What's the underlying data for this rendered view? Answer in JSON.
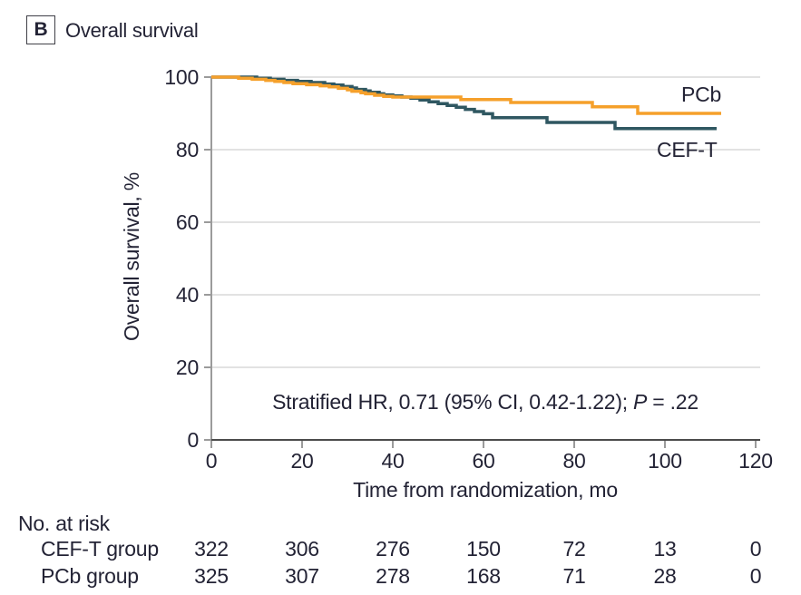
{
  "header": {
    "panel_label": "B",
    "title": "Overall survival"
  },
  "chart_data": {
    "type": "line",
    "subtype": "kaplan-meier-step",
    "title": "Overall survival",
    "xlabel": "Time from randomization, mo",
    "ylabel": "Overall survival, %",
    "xlim": [
      0,
      120
    ],
    "ylim": [
      0,
      100
    ],
    "x_ticks": [
      0,
      20,
      40,
      60,
      80,
      100,
      120
    ],
    "y_ticks": [
      0,
      20,
      40,
      60,
      80,
      100
    ],
    "grid": "horizontal",
    "legend_position": "end-of-curve",
    "annotation": {
      "before_p": "Stratified HR, 0.71 (95% CI, 0.42-1.22); ",
      "p": "P",
      "after_p": " = .22"
    },
    "series": [
      {
        "name": "CEF-T",
        "color": "#2F5761",
        "points": [
          [
            0,
            100
          ],
          [
            10,
            99.7
          ],
          [
            13,
            99.4
          ],
          [
            16,
            99.1
          ],
          [
            19,
            98.8
          ],
          [
            22,
            98.5
          ],
          [
            25,
            98.1
          ],
          [
            27,
            97.8
          ],
          [
            29,
            97.4
          ],
          [
            31,
            97.0
          ],
          [
            32,
            96.6
          ],
          [
            34,
            96.2
          ],
          [
            35,
            95.8
          ],
          [
            37,
            95.4
          ],
          [
            38,
            95.1
          ],
          [
            40,
            94.8
          ],
          [
            42,
            94.5
          ],
          [
            44,
            94.2
          ],
          [
            46,
            93.7
          ],
          [
            48,
            93.2
          ],
          [
            50,
            92.7
          ],
          [
            52,
            92.2
          ],
          [
            54,
            91.7
          ],
          [
            56,
            91.1
          ],
          [
            58,
            90.5
          ],
          [
            60,
            89.9
          ],
          [
            62,
            88.8
          ],
          [
            74,
            87.5
          ],
          [
            89,
            85.8
          ],
          [
            111.4,
            85.8
          ]
        ]
      },
      {
        "name": "PCb",
        "color": "#F5A02B",
        "points": [
          [
            0,
            100
          ],
          [
            6,
            99.7
          ],
          [
            9,
            99.4
          ],
          [
            12,
            99.1
          ],
          [
            14,
            98.8
          ],
          [
            16,
            98.5
          ],
          [
            18,
            98.2
          ],
          [
            21,
            97.9
          ],
          [
            24,
            97.6
          ],
          [
            26,
            97.3
          ],
          [
            28,
            96.9
          ],
          [
            30,
            96.5
          ],
          [
            31,
            96.1
          ],
          [
            33,
            95.7
          ],
          [
            34,
            95.4
          ],
          [
            36,
            95.0
          ],
          [
            38,
            94.7
          ],
          [
            40,
            94.5
          ],
          [
            55,
            93.8
          ],
          [
            66,
            93.0
          ],
          [
            84,
            91.8
          ],
          [
            94,
            90.0
          ],
          [
            112.4,
            90.0
          ]
        ]
      }
    ]
  },
  "risk_table": {
    "title": "No. at risk",
    "rows": [
      {
        "label": "CEF-T group",
        "values": [
          "322",
          "306",
          "276",
          "150",
          "72",
          "13",
          "0"
        ]
      },
      {
        "label": "PCb group",
        "values": [
          "325",
          "307",
          "278",
          "168",
          "71",
          "28",
          "0"
        ]
      }
    ]
  },
  "colors": {
    "text": "#232335",
    "grid": "#D9D9D9",
    "axis_x": "#4B4B4B",
    "axis_y": "#9B9B9B",
    "ceft": "#2F5761",
    "pcb": "#F5A02B"
  }
}
